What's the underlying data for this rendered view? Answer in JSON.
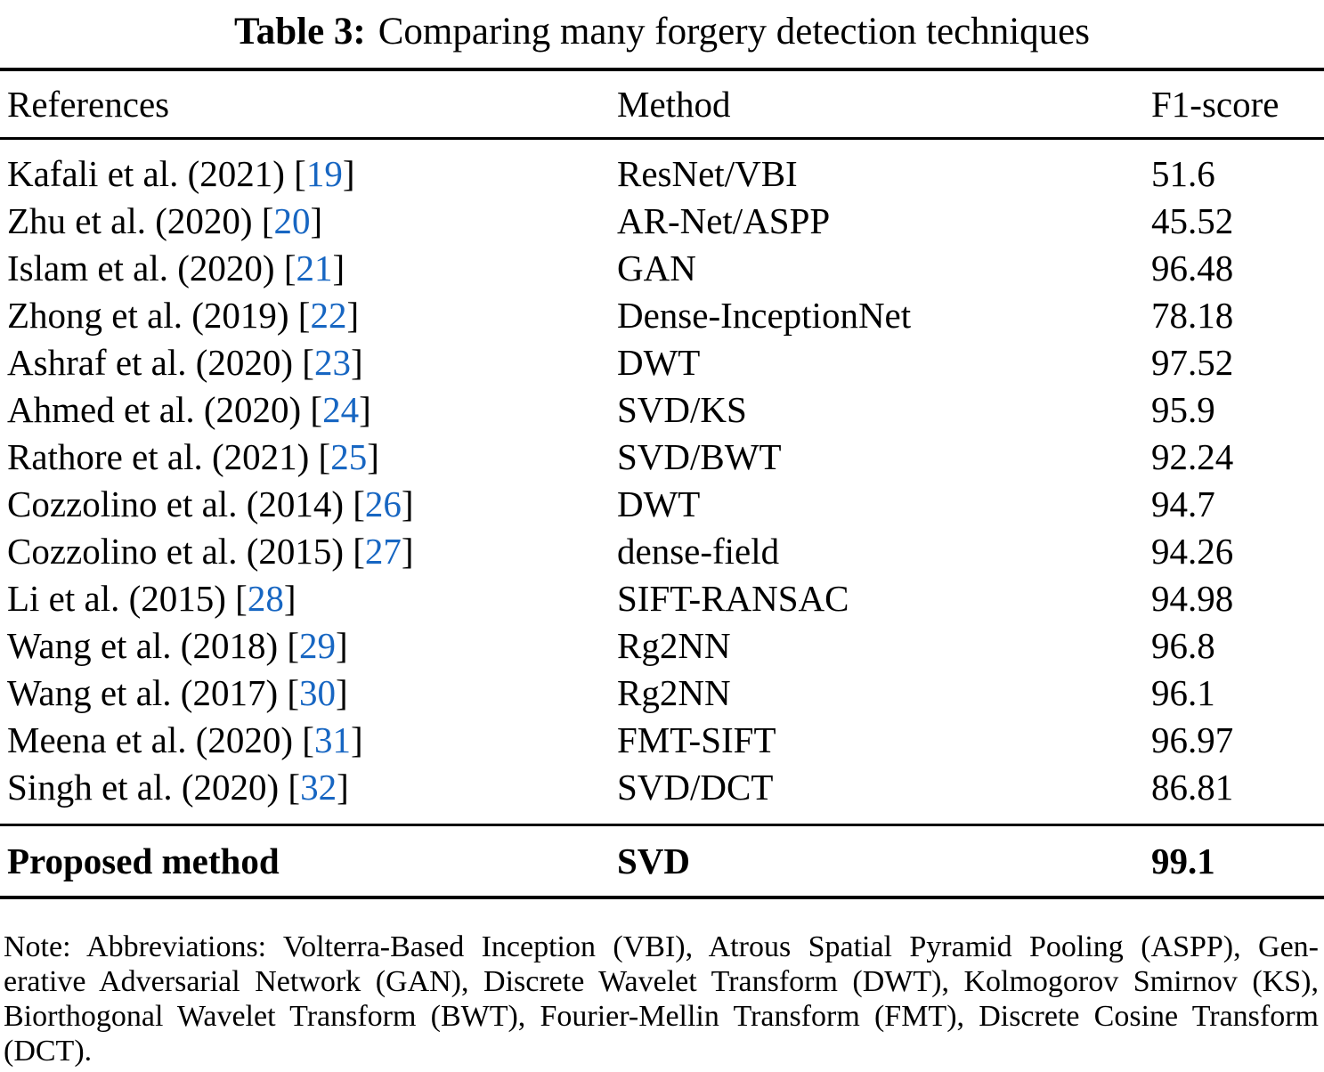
{
  "caption": {
    "label": "Table 3:",
    "text": "Comparing many forgery detection techniques"
  },
  "table": {
    "columns": [
      "References",
      "Method",
      "F1-score"
    ],
    "citation_brackets": [
      "[",
      "]"
    ],
    "rows": [
      {
        "reference": "Kafali et al. (2021)",
        "citation": "19",
        "method": "ResNet/VBI",
        "f1_score": "51.6"
      },
      {
        "reference": "Zhu et al. (2020)",
        "citation": "20",
        "method": "AR-Net/ASPP",
        "f1_score": "45.52"
      },
      {
        "reference": "Islam et al. (2020)",
        "citation": "21",
        "method": "GAN",
        "f1_score": "96.48"
      },
      {
        "reference": "Zhong et al. (2019)",
        "citation": "22",
        "method": "Dense-InceptionNet",
        "f1_score": "78.18"
      },
      {
        "reference": "Ashraf et al. (2020)",
        "citation": "23",
        "method": "DWT",
        "f1_score": "97.52"
      },
      {
        "reference": "Ahmed et al. (2020)",
        "citation": "24",
        "method": "SVD/KS",
        "f1_score": "95.9"
      },
      {
        "reference": "Rathore et al. (2021)",
        "citation": "25",
        "method": "SVD/BWT",
        "f1_score": "92.24"
      },
      {
        "reference": "Cozzolino et al. (2014)",
        "citation": "26",
        "method": "DWT",
        "f1_score": "94.7"
      },
      {
        "reference": "Cozzolino et al. (2015)",
        "citation": "27",
        "method": "dense-field",
        "f1_score": "94.26"
      },
      {
        "reference": "Li et al. (2015)",
        "citation": "28",
        "method": "SIFT-RANSAC",
        "f1_score": "94.98"
      },
      {
        "reference": "Wang et al. (2018)",
        "citation": "29",
        "method": "Rg2NN",
        "f1_score": "96.8"
      },
      {
        "reference": "Wang et al. (2017)",
        "citation": "30",
        "method": "Rg2NN",
        "f1_score": "96.1"
      },
      {
        "reference": "Meena et al. (2020)",
        "citation": "31",
        "method": "FMT-SIFT",
        "f1_score": "96.97"
      },
      {
        "reference": "Singh et al. (2020)",
        "citation": "32",
        "method": "SVD/DCT",
        "f1_score": "86.81"
      }
    ],
    "proposed_row": {
      "reference": "Proposed method",
      "method": "SVD",
      "f1_score": "99.1"
    }
  },
  "note": {
    "lines": [
      "Note: Abbreviations: Volterra-Based Inception (VBI), Atrous Spatial Pyramid Pooling (ASPP), Gen-",
      "erative Adversarial Network (GAN), Discrete Wavelet Transform (DWT), Kolmogorov Smirnov (KS),",
      "Biorthogonal Wavelet Transform (BWT), Fourier-Mellin Transform (FMT), Discrete Cosine Transform",
      "(DCT)."
    ]
  },
  "colors": {
    "citation_blue": "#1766c2",
    "text": "#000000",
    "background": "#ffffff"
  }
}
